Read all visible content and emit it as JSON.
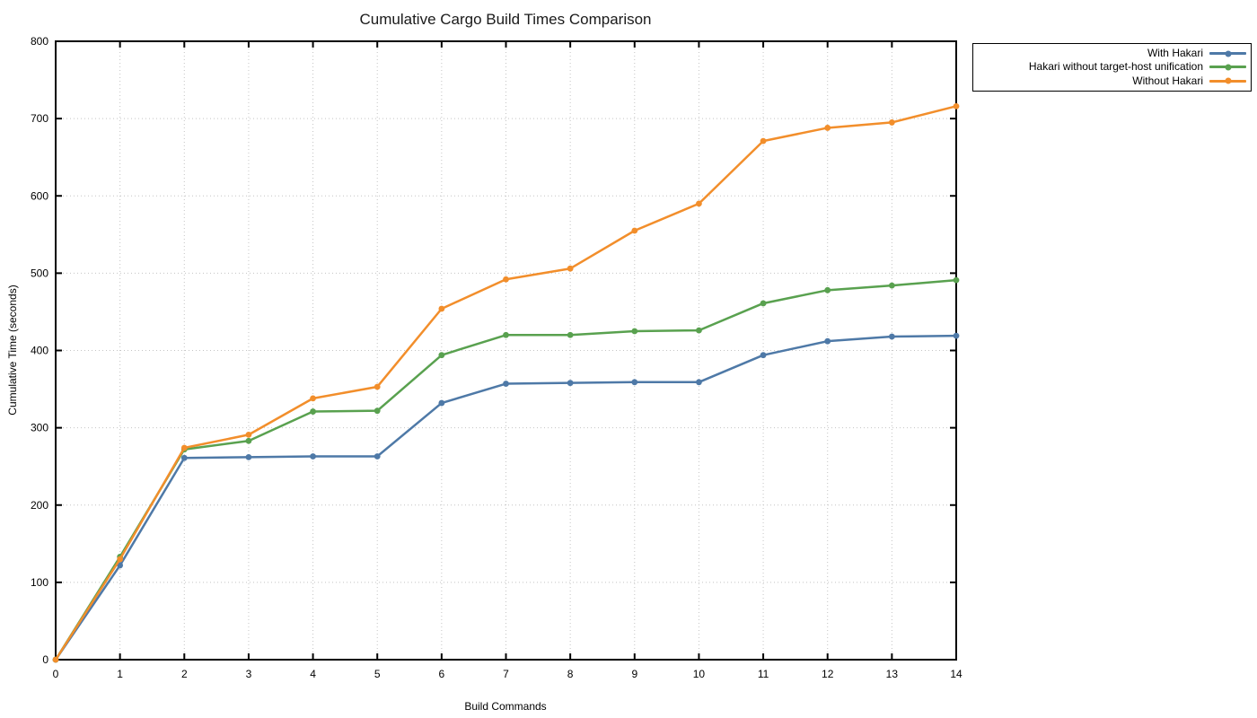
{
  "chart_data": {
    "type": "line",
    "title": "Cumulative Cargo Build Times Comparison",
    "xlabel": "Build Commands",
    "ylabel": "Cumulative Time (seconds)",
    "xlim": [
      0,
      14
    ],
    "ylim": [
      0,
      800
    ],
    "xticks": [
      0,
      1,
      2,
      3,
      4,
      5,
      6,
      7,
      8,
      9,
      10,
      11,
      12,
      13,
      14
    ],
    "yticks": [
      0,
      100,
      200,
      300,
      400,
      500,
      600,
      700,
      800
    ],
    "grid": "dotted",
    "legend_position": "outside-top-right",
    "x": [
      0,
      1,
      2,
      3,
      4,
      5,
      6,
      7,
      8,
      9,
      10,
      11,
      12,
      13,
      14
    ],
    "series": [
      {
        "name": "With Hakari",
        "color": "#4e79a7",
        "values": [
          0,
          122,
          261,
          262,
          263,
          263,
          332,
          357,
          358,
          359,
          359,
          394,
          412,
          418,
          419
        ]
      },
      {
        "name": "Hakari without target-host unification",
        "color": "#59a14f",
        "values": [
          0,
          133,
          272,
          283,
          321,
          322,
          394,
          420,
          420,
          425,
          426,
          461,
          478,
          484,
          491
        ]
      },
      {
        "name": "Without Hakari",
        "color": "#f28e2b",
        "values": [
          0,
          130,
          274,
          291,
          338,
          353,
          454,
          492,
          506,
          555,
          590,
          671,
          688,
          695,
          716
        ]
      }
    ]
  }
}
